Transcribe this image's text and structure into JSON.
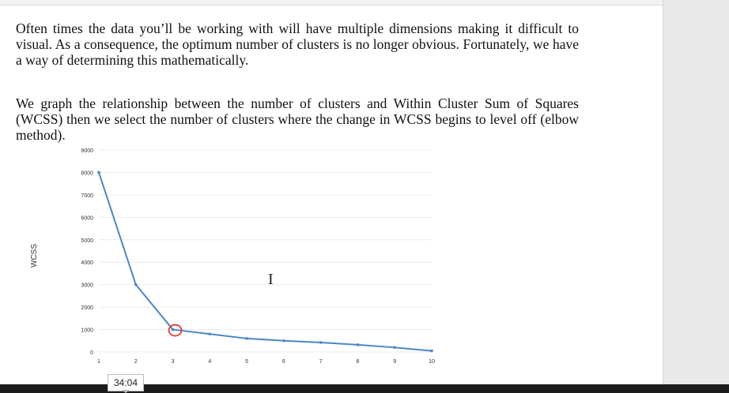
{
  "document": {
    "paragraph_1": "Often times the data you’ll be working with will have multiple dimensions making it difficult to visual. As a consequence, the optimum number of clusters is no longer obvious. Fortunately, we have a way of determining this mathematically.",
    "paragraph_2": "We graph the relationship between the number of clusters and Within Cluster Sum of Squares (WCSS) then we select the number of clusters where the change in WCSS begins to level off (elbow method)."
  },
  "cursor": {
    "glyph": "I"
  },
  "video": {
    "timestamp": "34:04"
  },
  "colors": {
    "line": "#4a86c8",
    "highlight": "#e23b2e",
    "grid": "#ececec"
  },
  "chart_data": {
    "type": "line",
    "title": "",
    "xlabel": "",
    "ylabel": "WCSS",
    "x": [
      1,
      2,
      3,
      4,
      5,
      6,
      7,
      8,
      9,
      10
    ],
    "series": [
      {
        "values": [
          8000,
          3000,
          1000,
          800,
          600,
          500,
          420,
          320,
          200,
          50
        ]
      }
    ],
    "xticks": [
      "1",
      "2",
      "3",
      "4",
      "5",
      "6",
      "7",
      "8",
      "9",
      "10"
    ],
    "yticks": [
      "0",
      "1000",
      "2000",
      "3000",
      "4000",
      "5000",
      "6000",
      "7000",
      "8000",
      "9000"
    ],
    "xlim": [
      1,
      10
    ],
    "ylim": [
      0,
      9000
    ],
    "grid": true,
    "highlighted_point": {
      "x": 3,
      "y": 1000
    }
  }
}
